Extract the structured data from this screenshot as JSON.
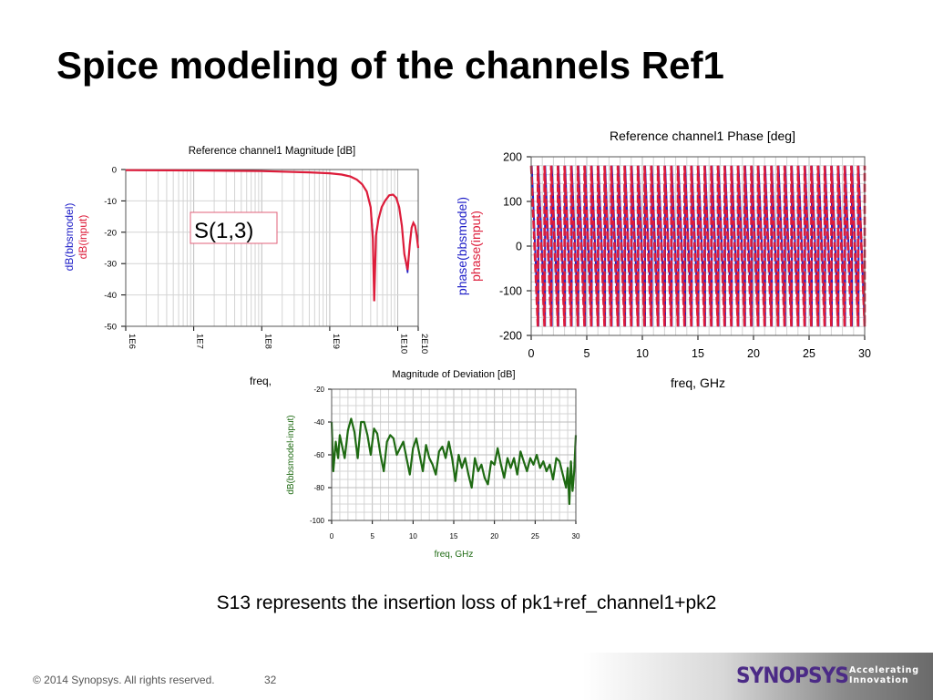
{
  "slide": {
    "title": "Spice modeling of the channels Ref1",
    "caption": "S13 represents the insertion loss of pk1+ref_channel1+pk2",
    "footer_copyright": "© 2014 Synopsys. All rights reserved.",
    "page_number": "32",
    "brand": {
      "logo_text": "SYNOPSYS",
      "tagline_1": "Accelerating",
      "tagline_2": "Innovation"
    }
  },
  "colors": {
    "model": "#2020c8",
    "input": "#dd1c3a",
    "deviation": "#1e6a12",
    "frame": "#555555",
    "grid": "#d4d4d4"
  },
  "chart_data": [
    {
      "id": "magnitude",
      "type": "line",
      "title": "Reference channel1 Magnitude [dB]",
      "xlabel": "freq,",
      "ylabel_model": "dB(bbsmodel)",
      "ylabel_input": "dB(input)",
      "xscale": "log",
      "xlim": [
        1000000,
        20000000000
      ],
      "ylim": [
        -50,
        0
      ],
      "x_tick_labels": [
        "1E6",
        "1E7",
        "1E8",
        "1E9",
        "1E10",
        "2E10"
      ],
      "y_tick_labels": [
        "0",
        "-10",
        "-20",
        "-30",
        "-40",
        "-50"
      ],
      "annotation": "S(1,3)",
      "grid": true,
      "series": [
        {
          "name": "bbsmodel",
          "x": [
            1000000,
            10000000,
            100000000,
            500000000,
            1000000000,
            1500000000,
            2000000000,
            2500000000,
            3000000000,
            3500000000,
            4000000000,
            4300000000,
            4500000000,
            4800000000,
            5200000000,
            5800000000,
            6500000000,
            7500000000,
            8500000000,
            9500000000,
            10500000000,
            11500000000,
            12500000000,
            14000000000,
            15000000000,
            16000000000,
            17000000000,
            18000000000,
            19000000000,
            20000000000
          ],
          "values": [
            -0.2,
            -0.3,
            -0.5,
            -0.9,
            -1.2,
            -1.6,
            -2.2,
            -3.2,
            -4.7,
            -7.0,
            -12.0,
            -20.0,
            -41.0,
            -21.0,
            -16.0,
            -12.0,
            -10.0,
            -8.2,
            -8.0,
            -9.0,
            -12.0,
            -18.0,
            -27.0,
            -33.0,
            -24.0,
            -18.5,
            -17.0,
            -18.0,
            -21.0,
            -25.0
          ]
        },
        {
          "name": "input",
          "x": [
            1000000,
            10000000,
            100000000,
            500000000,
            1000000000,
            1500000000,
            2000000000,
            2500000000,
            3000000000,
            3500000000,
            4000000000,
            4300000000,
            4500000000,
            4800000000,
            5200000000,
            5800000000,
            6500000000,
            7500000000,
            8500000000,
            9500000000,
            10500000000,
            11500000000,
            12500000000,
            14000000000,
            15000000000,
            16000000000,
            17000000000,
            18000000000,
            19000000000,
            20000000000
          ],
          "values": [
            -0.2,
            -0.3,
            -0.5,
            -0.9,
            -1.2,
            -1.6,
            -2.2,
            -3.2,
            -4.7,
            -7.0,
            -12.0,
            -22.0,
            -42.0,
            -21.0,
            -16.0,
            -12.0,
            -10.0,
            -8.2,
            -8.0,
            -9.0,
            -12.0,
            -18.0,
            -27.0,
            -32.0,
            -24.0,
            -18.5,
            -17.0,
            -18.0,
            -21.0,
            -25.0
          ]
        }
      ]
    },
    {
      "id": "phase",
      "type": "line",
      "title": "Reference channel1 Phase [deg]",
      "xlabel": "freq, GHz",
      "ylabel_model": "phase(bbsmodel)",
      "ylabel_input": "phase(input)",
      "xlim": [
        0,
        30
      ],
      "ylim": [
        -200,
        200
      ],
      "x_tick_labels": [
        "0",
        "5",
        "10",
        "15",
        "20",
        "25",
        "30"
      ],
      "y_tick_labels": [
        "200",
        "100",
        "0",
        "-100",
        "-200"
      ],
      "grid": true,
      "waveform": {
        "shape": "sawtooth",
        "cycles": 50,
        "amplitude_deg": 180
      },
      "series": [
        {
          "name": "bbsmodel"
        },
        {
          "name": "input"
        }
      ]
    },
    {
      "id": "deviation",
      "type": "line",
      "title": "Magnitude of Deviation [dB]",
      "xlabel": "freq, GHz",
      "ylabel": "dB(bbsmodel-input)",
      "xlim": [
        0,
        30
      ],
      "ylim": [
        -100,
        -20
      ],
      "x_tick_labels": [
        "0",
        "5",
        "10",
        "15",
        "20",
        "25",
        "30"
      ],
      "y_tick_labels": [
        "-20",
        "-40",
        "-60",
        "-80",
        "-100"
      ],
      "grid": true,
      "series": [
        {
          "name": "bbsmodel-input",
          "x": [
            0,
            0.2,
            0.5,
            0.8,
            1.0,
            1.3,
            1.6,
            2.0,
            2.4,
            2.8,
            3.2,
            3.6,
            4.0,
            4.4,
            4.8,
            5.2,
            5.6,
            6.0,
            6.4,
            6.8,
            7.2,
            7.6,
            8.0,
            8.4,
            8.8,
            9.2,
            9.6,
            10.0,
            10.4,
            10.8,
            11.2,
            11.6,
            12.0,
            12.4,
            12.8,
            13.2,
            13.6,
            14.0,
            14.4,
            14.8,
            15.2,
            15.6,
            16.0,
            16.4,
            16.8,
            17.2,
            17.6,
            18.0,
            18.4,
            18.8,
            19.2,
            19.6,
            20.0,
            20.4,
            20.8,
            21.2,
            21.6,
            22.0,
            22.4,
            22.8,
            23.2,
            23.6,
            24.0,
            24.4,
            24.8,
            25.2,
            25.6,
            26.0,
            26.4,
            26.8,
            27.2,
            27.6,
            28.0,
            28.4,
            28.8,
            29.0,
            29.2,
            29.4,
            29.6,
            29.8,
            30.0
          ],
          "values": [
            -40,
            -70,
            -52,
            -62,
            -48,
            -55,
            -62,
            -45,
            -38,
            -46,
            -62,
            -40,
            -40,
            -48,
            -60,
            -44,
            -47,
            -60,
            -70,
            -52,
            -48,
            -50,
            -60,
            -56,
            -52,
            -62,
            -72,
            -56,
            -50,
            -60,
            -70,
            -54,
            -62,
            -66,
            -72,
            -58,
            -55,
            -62,
            -52,
            -62,
            -76,
            -60,
            -68,
            -62,
            -72,
            -80,
            -62,
            -70,
            -66,
            -74,
            -78,
            -64,
            -66,
            -56,
            -66,
            -74,
            -62,
            -68,
            -62,
            -72,
            -58,
            -64,
            -70,
            -62,
            -66,
            -60,
            -68,
            -64,
            -70,
            -66,
            -75,
            -62,
            -64,
            -72,
            -80,
            -68,
            -90,
            -64,
            -82,
            -70,
            -48
          ]
        }
      ]
    }
  ]
}
